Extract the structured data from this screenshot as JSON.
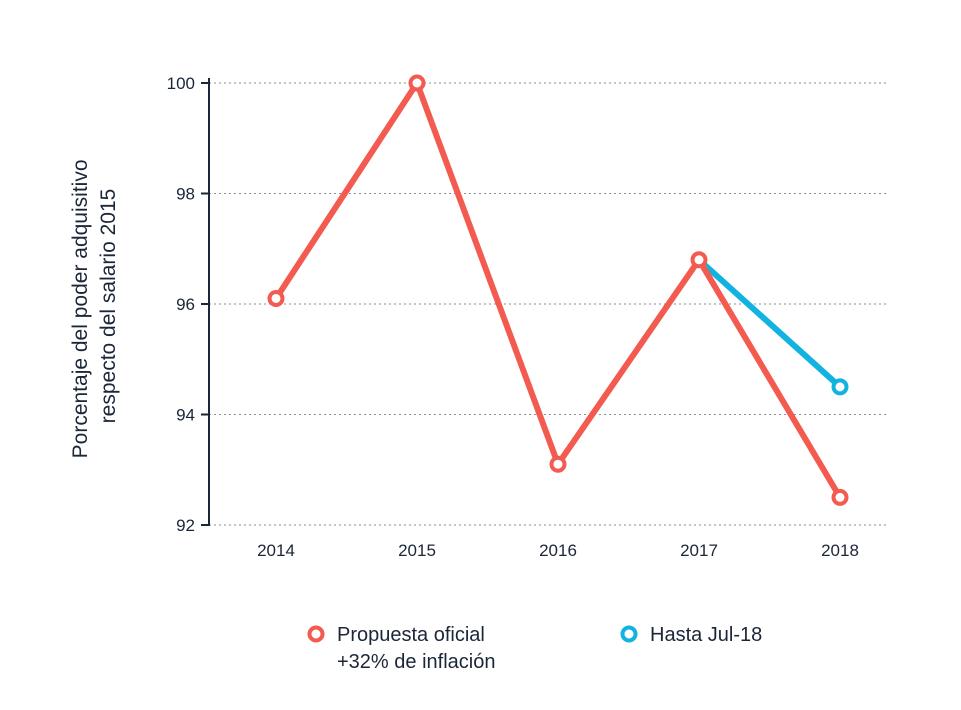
{
  "chart_data": {
    "type": "line",
    "x": [
      "2014",
      "2015",
      "2016",
      "2017",
      "2018"
    ],
    "ylabel_line1": "Porcentaje del poder adquisitivo",
    "ylabel_line2": "respecto del salario 2015",
    "ylim": [
      92,
      100
    ],
    "yticks": [
      "92",
      "94",
      "96",
      "98",
      "100"
    ],
    "grid": true,
    "legend_position": "bottom",
    "series": [
      {
        "name_line1": "Propuesta oficial",
        "name_line2": "+32% de inflación",
        "color": "#f45b50",
        "values": [
          96.1,
          100.0,
          93.1,
          96.8,
          92.5
        ]
      },
      {
        "name_line1": "Hasta Jul-18",
        "name_line2": "",
        "color": "#12b3e0",
        "values": [
          null,
          null,
          null,
          96.8,
          94.5
        ]
      }
    ]
  }
}
